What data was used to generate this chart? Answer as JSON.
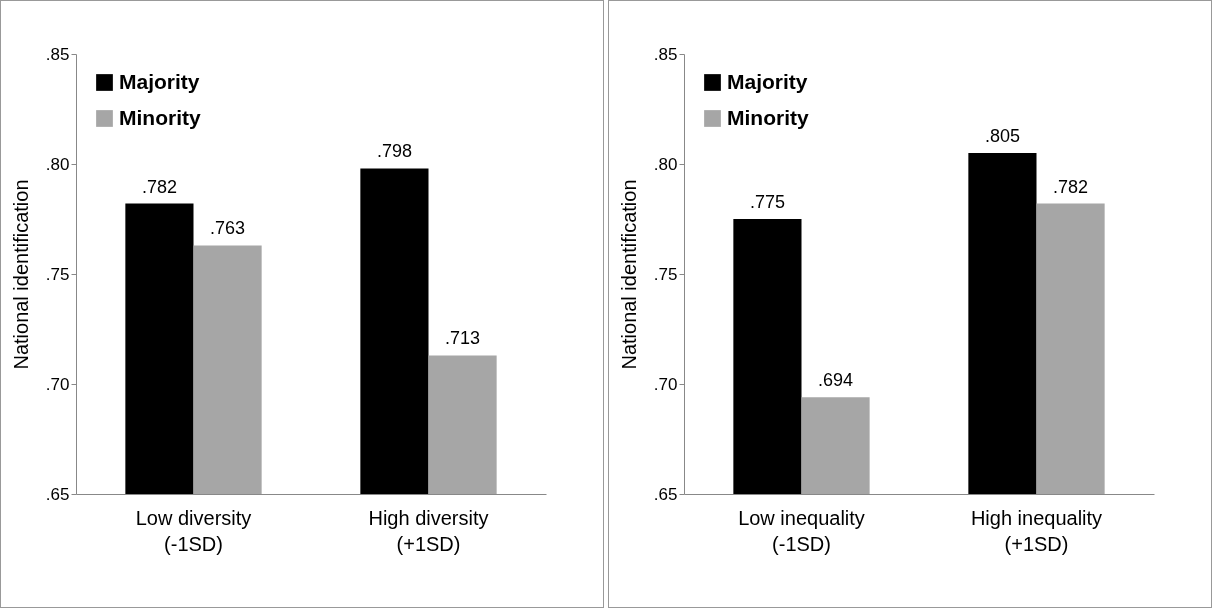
{
  "chart_data": [
    {
      "type": "bar",
      "ylabel": "National identification",
      "categories": [
        "Low diversity\n(-1SD)",
        "High diversity\n(+1SD)"
      ],
      "ylim": [
        0.65,
        0.85
      ],
      "yticks": [
        {
          "value": 0.65,
          "label": ".65"
        },
        {
          "value": 0.7,
          "label": ".70"
        },
        {
          "value": 0.75,
          "label": ".75"
        },
        {
          "value": 0.8,
          "label": ".80"
        },
        {
          "value": 0.85,
          "label": ".85"
        }
      ],
      "legend": "top left",
      "series": [
        {
          "name": "Majority",
          "color": "#000000",
          "values": [
            0.782,
            0.798
          ],
          "value_labels": [
            ".782",
            ".798"
          ]
        },
        {
          "name": "Minority",
          "color": "#a6a6a6",
          "values": [
            0.763,
            0.713
          ],
          "value_labels": [
            ".763",
            ".713"
          ]
        }
      ]
    },
    {
      "type": "bar",
      "ylabel": "National identification",
      "categories": [
        "Low inequality\n(-1SD)",
        "High inequality\n(+1SD)"
      ],
      "ylim": [
        0.65,
        0.85
      ],
      "yticks": [
        {
          "value": 0.65,
          "label": ".65"
        },
        {
          "value": 0.7,
          "label": ".70"
        },
        {
          "value": 0.75,
          "label": ".75"
        },
        {
          "value": 0.8,
          "label": ".80"
        },
        {
          "value": 0.85,
          "label": ".85"
        }
      ],
      "legend": "top left",
      "series": [
        {
          "name": "Majority",
          "color": "#000000",
          "values": [
            0.775,
            0.805
          ],
          "value_labels": [
            ".775",
            ".805"
          ]
        },
        {
          "name": "Minority",
          "color": "#a6a6a6",
          "values": [
            0.694,
            0.782
          ],
          "value_labels": [
            ".694",
            ".782"
          ]
        }
      ]
    }
  ]
}
